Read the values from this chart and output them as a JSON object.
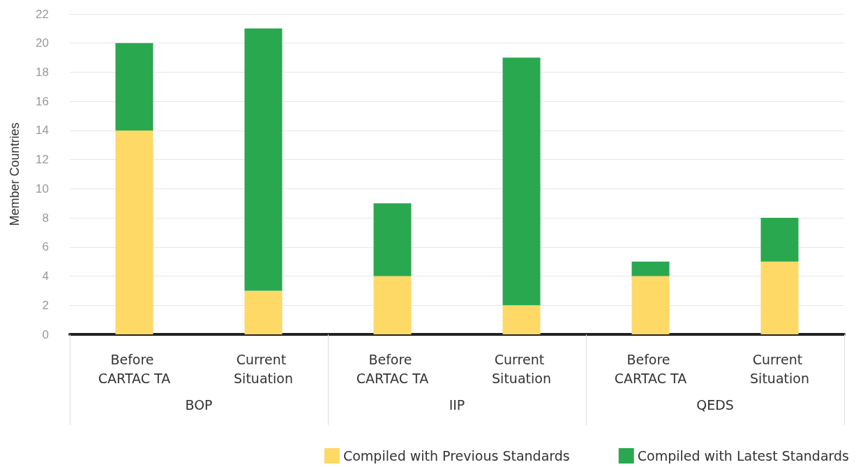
{
  "chart_data": {
    "type": "bar",
    "stacked": true,
    "ylabel": "Member Countries",
    "categories": [
      "Before CARTAC TA",
      "Current Situation",
      "Before CARTAC TA",
      "Current Situation",
      "Before CARTAC TA",
      "Current Situation"
    ],
    "series": [
      {
        "name": "Compiled with Previous Standards",
        "color": "#fed966",
        "values": [
          14,
          3,
          4,
          2,
          4,
          5
        ]
      },
      {
        "name": "Compiled with Latest Standards",
        "color": "#2aa850",
        "values": [
          6,
          18,
          5,
          17,
          1,
          3
        ]
      }
    ],
    "annotations": [
      "BOP",
      "IIP",
      "QEDS"
    ],
    "ylim": [
      0,
      22
    ],
    "yticks": [
      0,
      2,
      4,
      6,
      8,
      10,
      12,
      14,
      16,
      18,
      20,
      22
    ],
    "grid": "y",
    "legend": "bottom right"
  }
}
